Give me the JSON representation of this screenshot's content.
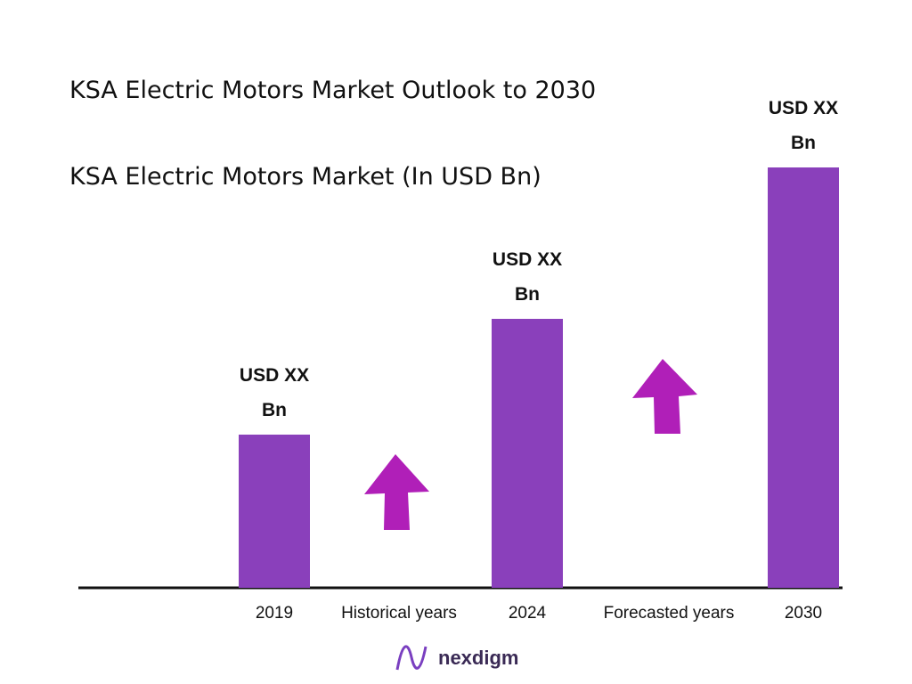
{
  "chart_data": {
    "type": "bar",
    "title": "KSA Electric Motors Market Outlook to 2030",
    "subtitle": "KSA Electric Motors Market (In USD Bn)",
    "categories": [
      "2019",
      "2024",
      "2030"
    ],
    "values": [
      1.72,
      3.02,
      4.72
    ],
    "value_labels": [
      "USD XX Bn",
      "USD XX Bn",
      "USD XX Bn"
    ],
    "color": "#8a40bb",
    "ylim": [
      0,
      4.8
    ],
    "annotations": [
      "Historical years",
      "Forecasted years"
    ]
  },
  "logo": "nexdigm"
}
